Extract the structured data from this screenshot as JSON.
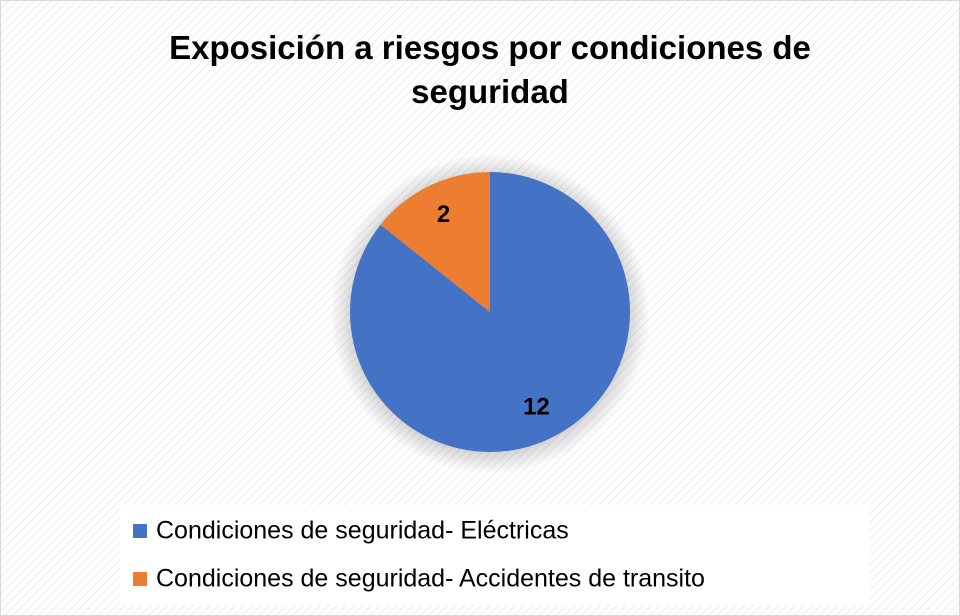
{
  "chart_data": {
    "type": "pie",
    "title": "Exposición a riesgos por condiciones de seguridad",
    "categories": [
      "Condiciones de seguridad- Eléctricas",
      "Condiciones de seguridad- Accidentes de transito"
    ],
    "values": [
      12,
      2
    ],
    "colors": [
      "#4472c4",
      "#ed7d31"
    ],
    "legend": "bottom"
  }
}
